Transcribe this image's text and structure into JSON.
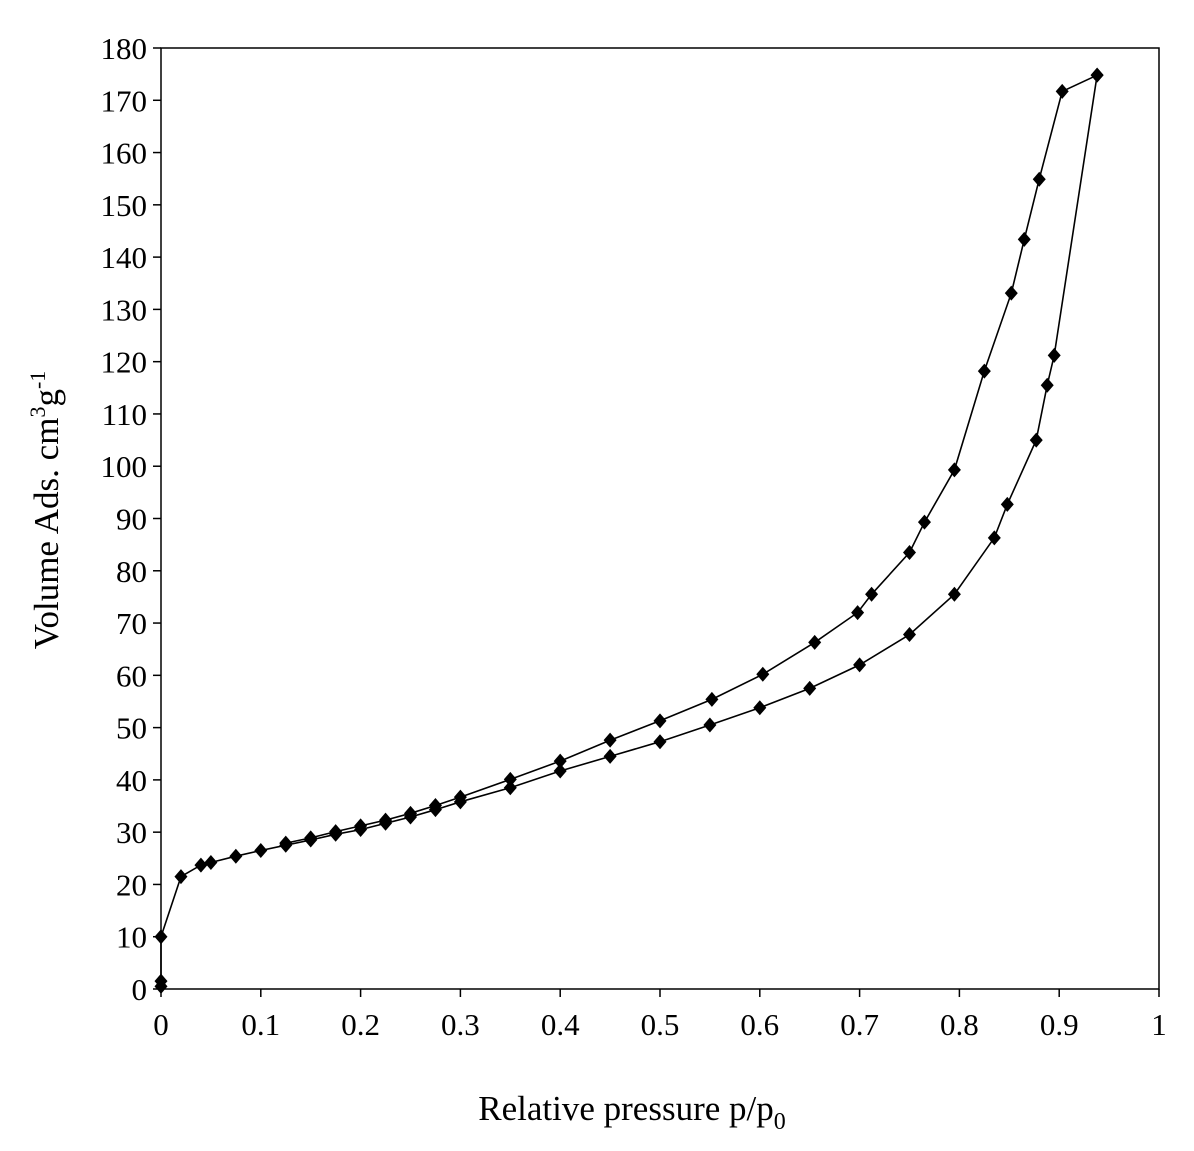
{
  "chart_data": {
    "type": "scatter",
    "xlabel": "Relative pressure p/p0",
    "ylabel": "Volume Ads. cm3g-1",
    "xlim": [
      0,
      1
    ],
    "ylim": [
      0,
      180
    ],
    "x_ticks": [
      "0",
      "0.1",
      "0.2",
      "0.3",
      "0.4",
      "0.5",
      "0.6",
      "0.7",
      "0.8",
      "0.9",
      "1"
    ],
    "y_ticks": [
      "0",
      "10",
      "20",
      "30",
      "40",
      "50",
      "60",
      "70",
      "80",
      "90",
      "100",
      "110",
      "120",
      "130",
      "140",
      "150",
      "160",
      "170",
      "180"
    ],
    "grid": false,
    "legend": "none",
    "marker": "diamond",
    "line_color": "#000000",
    "series": [
      {
        "points": [
          [
            0.0,
            0.5
          ],
          [
            0.0,
            1.5
          ],
          [
            0.0,
            10.0
          ],
          [
            0.02,
            21.5
          ],
          [
            0.04,
            23.7
          ],
          [
            0.05,
            24.2
          ],
          [
            0.075,
            25.4
          ],
          [
            0.1,
            26.5
          ],
          [
            0.125,
            27.5
          ],
          [
            0.15,
            28.5
          ],
          [
            0.175,
            29.6
          ],
          [
            0.2,
            30.5
          ],
          [
            0.225,
            31.7
          ],
          [
            0.25,
            32.9
          ],
          [
            0.275,
            34.3
          ],
          [
            0.3,
            35.8
          ],
          [
            0.35,
            38.5
          ],
          [
            0.4,
            41.7
          ],
          [
            0.45,
            44.5
          ],
          [
            0.5,
            47.3
          ],
          [
            0.55,
            50.5
          ],
          [
            0.6,
            53.8
          ],
          [
            0.65,
            57.5
          ],
          [
            0.7,
            62.0
          ],
          [
            0.75,
            67.8
          ],
          [
            0.795,
            75.5
          ],
          [
            0.835,
            86.3
          ],
          [
            0.848,
            92.7
          ],
          [
            0.877,
            105.0
          ],
          [
            0.888,
            115.5
          ],
          [
            0.895,
            121.2
          ],
          [
            0.938,
            174.8
          ]
        ]
      },
      {
        "points": [
          [
            0.938,
            174.8
          ],
          [
            0.903,
            171.7
          ],
          [
            0.88,
            154.9
          ],
          [
            0.865,
            143.4
          ],
          [
            0.852,
            133.1
          ],
          [
            0.825,
            118.2
          ],
          [
            0.795,
            99.3
          ],
          [
            0.765,
            89.3
          ],
          [
            0.75,
            83.5
          ],
          [
            0.712,
            75.5
          ],
          [
            0.698,
            72.0
          ],
          [
            0.655,
            66.3
          ],
          [
            0.603,
            60.2
          ],
          [
            0.552,
            55.4
          ],
          [
            0.5,
            51.3
          ],
          [
            0.45,
            47.6
          ],
          [
            0.4,
            43.6
          ],
          [
            0.35,
            40.1
          ],
          [
            0.3,
            36.7
          ],
          [
            0.275,
            35.1
          ],
          [
            0.25,
            33.6
          ],
          [
            0.225,
            32.3
          ],
          [
            0.2,
            31.2
          ],
          [
            0.175,
            30.1
          ],
          [
            0.15,
            28.9
          ],
          [
            0.125,
            27.9
          ]
        ]
      }
    ]
  }
}
